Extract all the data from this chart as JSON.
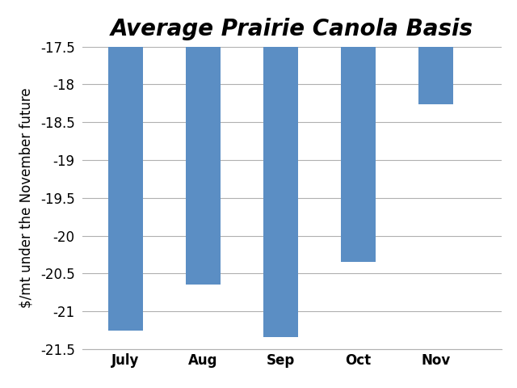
{
  "title": "Average Prairie Canola Basis",
  "categories": [
    "July",
    "Aug",
    "Sep",
    "Oct",
    "Nov"
  ],
  "values": [
    -21.25,
    -20.65,
    -21.34,
    -20.35,
    -18.26
  ],
  "bar_color": "#5b8ec4",
  "ylabel": "$/mt under the November future",
  "ylim": [
    -21.5,
    -17.5
  ],
  "yticks": [
    -21.5,
    -21.0,
    -20.5,
    -20.0,
    -19.5,
    -19.0,
    -18.5,
    -18.0,
    -17.5
  ],
  "background_color": "#ffffff",
  "grid_color": "#b0b0b0",
  "title_fontsize": 20,
  "axis_fontsize": 12,
  "tick_fontsize": 12,
  "bar_width": 0.45,
  "xlim": [
    -0.55,
    4.85
  ]
}
